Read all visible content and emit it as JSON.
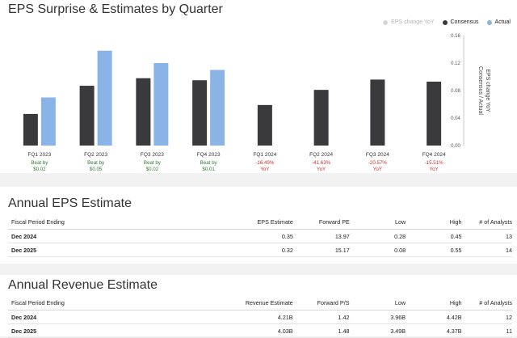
{
  "chart": {
    "title": "EPS Surprise & Estimates by Quarter",
    "legend": [
      {
        "label": "EPS change YoY",
        "color": "#d6d6d6",
        "muted": true
      },
      {
        "label": "Consensus",
        "color": "#3a3a3c"
      },
      {
        "label": "Actual",
        "color": "#8ab4e6"
      }
    ],
    "right_axis_label": "EPS change YoY\nConsensus / Actual"
  },
  "chart_data": {
    "type": "bar",
    "categories": [
      "FQ1 2023",
      "FQ2 2023",
      "FQ3 2023",
      "FQ4 2023",
      "FQ1 2024",
      "FQ2 2024",
      "FQ3 2024",
      "FQ4 2024"
    ],
    "series": [
      {
        "name": "Consensus",
        "values": [
          0.046,
          0.087,
          0.098,
          0.095,
          0.059,
          0.081,
          0.096,
          0.093
        ],
        "color": "#3a3a3c"
      },
      {
        "name": "Actual",
        "values": [
          0.07,
          0.138,
          0.12,
          0.11,
          null,
          null,
          null,
          null
        ],
        "color": "#8ab4e6"
      }
    ],
    "y_ticks": [
      "0.00",
      "0.04",
      "0.08",
      "0.12",
      "0.16"
    ],
    "ylim": [
      0,
      0.16
    ],
    "surprise_labels": [
      {
        "line1": "Beat by",
        "line2": "$0.02",
        "color": "#2e7d32"
      },
      {
        "line1": "Beat by",
        "line2": "$0.05",
        "color": "#2e7d32"
      },
      {
        "line1": "Beat by",
        "line2": "$0.02",
        "color": "#2e7d32"
      },
      {
        "line1": "Beat by",
        "line2": "$0.01",
        "color": "#2e7d32"
      },
      {
        "line1": "-16.49%",
        "line2": "YoY",
        "color": "#d32f2f"
      },
      {
        "line1": "-41.63%",
        "line2": "YoY",
        "color": "#d32f2f"
      },
      {
        "line1": "-20.57%",
        "line2": "YoY",
        "color": "#d32f2f"
      },
      {
        "line1": "-15.51%",
        "line2": "YoY",
        "color": "#d32f2f"
      }
    ],
    "grid": false,
    "legend_position": "top-right"
  },
  "eps": {
    "title": "Annual EPS Estimate",
    "columns": [
      "Fiscal Period Ending",
      "EPS Estimate",
      "Forward PE",
      "Low",
      "High",
      "# of Analysts"
    ],
    "rows": [
      [
        "Dec 2024",
        "0.35",
        "13.97",
        "0.28",
        "0.45",
        "13"
      ],
      [
        "Dec 2025",
        "0.32",
        "15.17",
        "0.08",
        "0.55",
        "14"
      ]
    ]
  },
  "revenue": {
    "title": "Annual Revenue Estimate",
    "columns": [
      "Fiscal Period Ending",
      "Revenue Estimate",
      "Forward P/S",
      "Low",
      "High",
      "# of Analysts"
    ],
    "rows": [
      [
        "Dec 2024",
        "4.21B",
        "1.42",
        "3.96B",
        "4.42B",
        "12"
      ],
      [
        "Dec 2025",
        "4.03B",
        "1.48",
        "3.49B",
        "4.37B",
        "11"
      ]
    ]
  }
}
